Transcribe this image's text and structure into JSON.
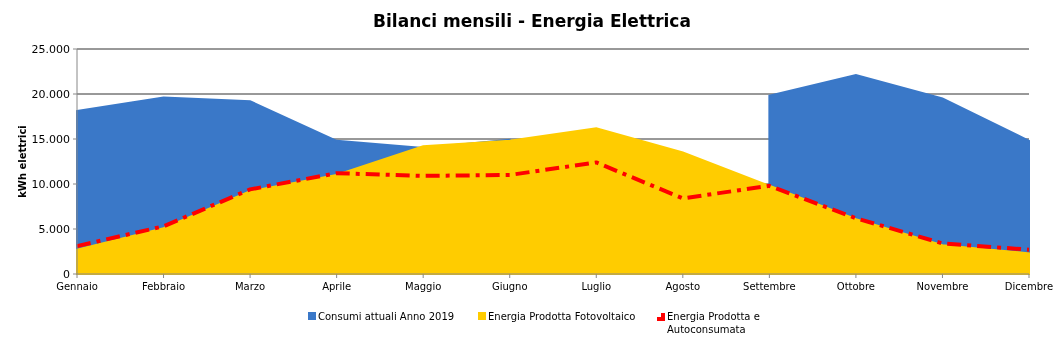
{
  "chart_data": {
    "type": "area",
    "title": "Bilanci mensili - Energia Elettrica",
    "ylabel": "kWh elettrici",
    "categories": [
      "Gennaio",
      "Febbraio",
      "Marzo",
      "Aprile",
      "Maggio",
      "Giugno",
      "Luglio",
      "Agosto",
      "Settembre",
      "Ottobre",
      "Novembre",
      "Dicembre"
    ],
    "series": [
      {
        "name": "Consumi  attuali Anno 2019",
        "color": "#3a78c8",
        "values": [
          18100,
          19600,
          19200,
          14800,
          14000,
          14900,
          null,
          null,
          19800,
          22100,
          19500,
          14800
        ]
      },
      {
        "name": "Energia Prodotta Fotovoltaico",
        "color": "#ffcc00",
        "values": [
          2700,
          5100,
          9200,
          11000,
          14200,
          14800,
          16200,
          13500,
          9800,
          6100,
          3200,
          2300
        ]
      },
      {
        "type": "line",
        "name": "Energia Prodotta e Autoconsumata",
        "color": "#ff0000",
        "line_style": "dashed",
        "values": [
          3100,
          5300,
          9400,
          11200,
          10900,
          11000,
          12400,
          8400,
          9800,
          6200,
          3400,
          2700
        ]
      }
    ],
    "ylim": [
      0,
      25000
    ],
    "yticks": [
      {
        "value": 0,
        "label": "0"
      },
      {
        "value": 5000,
        "label": "5.000"
      },
      {
        "value": 10000,
        "label": "10.000"
      },
      {
        "value": 15000,
        "label": "15.000"
      },
      {
        "value": 20000,
        "label": "20.000"
      },
      {
        "value": 25000,
        "label": "25.000"
      }
    ],
    "grid": "y",
    "legend": "bottom"
  }
}
